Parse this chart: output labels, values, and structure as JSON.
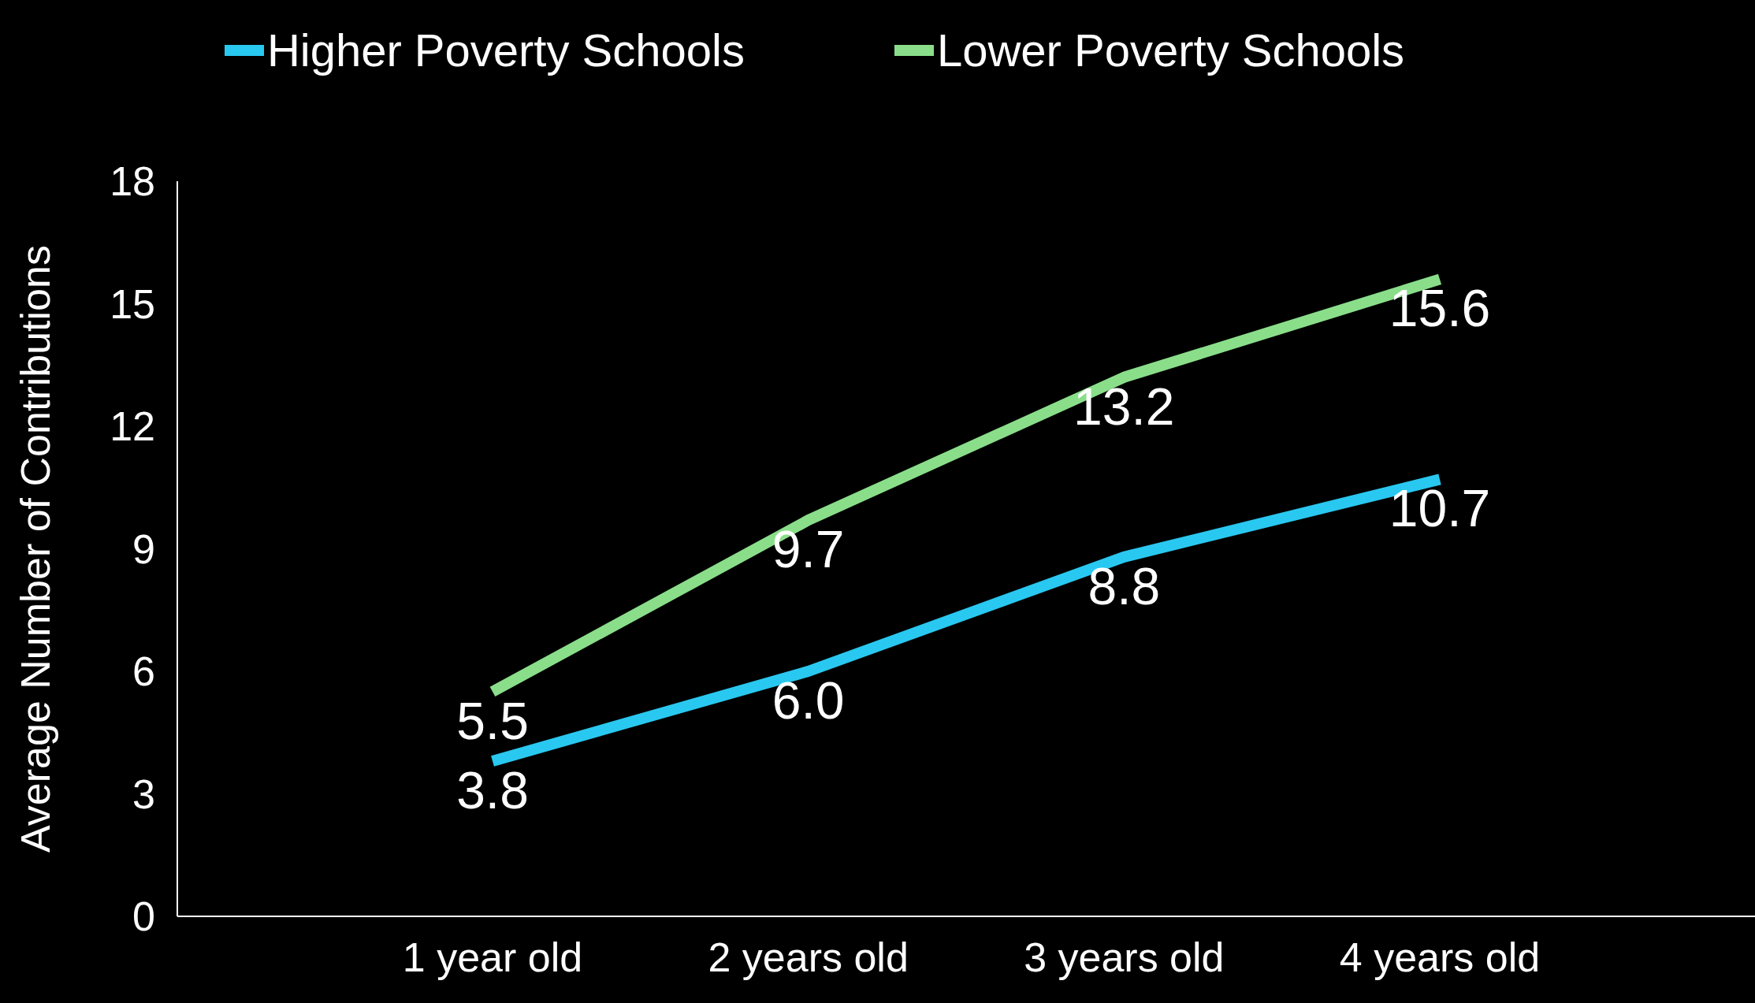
{
  "chart_data": {
    "type": "line",
    "ylabel": "Average Number of Contributions",
    "categories": [
      "1 year old",
      "2 years old",
      "3 years old",
      "4 years old"
    ],
    "series": [
      {
        "name": "Higher Poverty Schools",
        "color": "#29c8f0",
        "values": [
          3.8,
          6.0,
          8.8,
          10.7
        ],
        "value_labels": [
          "3.8",
          "6.0",
          "8.8",
          "10.7"
        ]
      },
      {
        "name": "Lower Poverty Schools",
        "color": "#8ade8a",
        "values": [
          5.5,
          9.7,
          13.2,
          15.6
        ],
        "value_labels": [
          "5.5",
          "9.7",
          "13.2",
          "15.6"
        ]
      }
    ],
    "ylim": [
      0,
      18
    ],
    "yticks": [
      0,
      3,
      6,
      9,
      12,
      15,
      18
    ],
    "grid": false,
    "legend": "top",
    "marker": "none",
    "line_style": "solid"
  }
}
